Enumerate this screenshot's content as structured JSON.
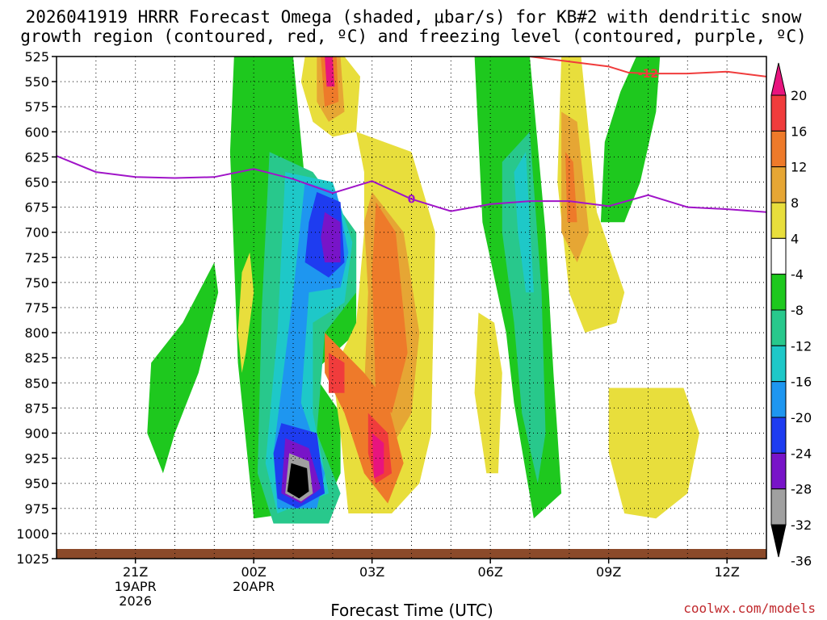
{
  "chart_data": {
    "type": "heatmap",
    "title_line1": "2026041919 HRRR Forecast Omega (shaded, μbar/s) for KB#2 with dendritic snow",
    "title_line2": "growth region (contoured, red, ºC) and freezing level (contoured, purple, ºC)",
    "xlabel": "Forecast Time (UTC)",
    "y_ticks": [
      525,
      550,
      575,
      600,
      625,
      650,
      675,
      700,
      725,
      750,
      775,
      800,
      825,
      850,
      875,
      900,
      925,
      950,
      975,
      1000,
      1025
    ],
    "y_range_hPa": [
      525,
      1025
    ],
    "x_range_hours": [
      -5,
      13
    ],
    "x_ticks": [
      {
        "hour": -3,
        "lines": [
          "21Z",
          "19APR",
          "2026"
        ]
      },
      {
        "hour": 0,
        "lines": [
          "00Z",
          "20APR"
        ]
      },
      {
        "hour": 3,
        "lines": [
          "03Z"
        ]
      },
      {
        "hour": 6,
        "lines": [
          "06Z"
        ]
      },
      {
        "hour": 9,
        "lines": [
          "09Z"
        ]
      },
      {
        "hour": 12,
        "lines": [
          "12Z"
        ]
      }
    ],
    "colorbar": {
      "labels": [
        "20",
        "16",
        "12",
        "8",
        "4",
        "-4",
        "-8",
        "-12",
        "-16",
        "-20",
        "-24",
        "-28",
        "-32",
        "-36"
      ],
      "colors": [
        "#e8147e",
        "#f03c3c",
        "#ee7a2a",
        "#e6a634",
        "#e8de3c",
        "#ffffff",
        "#1ec81e",
        "#28c88c",
        "#1ec8c8",
        "#1e96f0",
        "#1e3cf0",
        "#7814c8",
        "#a0a0a0",
        "#000000"
      ]
    },
    "contours": [
      {
        "name": "freezing-level",
        "label": "0",
        "color": "#a014c8",
        "points": [
          [
            -5,
            624
          ],
          [
            -4,
            640
          ],
          [
            -3,
            645
          ],
          [
            -2,
            646
          ],
          [
            -1,
            645
          ],
          [
            0,
            637
          ],
          [
            1,
            647
          ],
          [
            2,
            661
          ],
          [
            3,
            649
          ],
          [
            4,
            667
          ],
          [
            5,
            679
          ],
          [
            6,
            672
          ],
          [
            7,
            669
          ],
          [
            8,
            669
          ],
          [
            9,
            674
          ],
          [
            10,
            663
          ],
          [
            11,
            675
          ],
          [
            12,
            677
          ],
          [
            13,
            680
          ]
        ]
      },
      {
        "name": "dgz-minus12",
        "label": "-12",
        "color": "#f03c3c",
        "points": [
          [
            7,
            525
          ],
          [
            8,
            530
          ],
          [
            9,
            535
          ],
          [
            9.5,
            541
          ],
          [
            10,
            542
          ],
          [
            11,
            542
          ],
          [
            12,
            540
          ],
          [
            13,
            545
          ]
        ]
      }
    ],
    "regions": [
      {
        "label": "green-w",
        "c": "#1ec81e",
        "p": [
          [
            -1,
            525
          ],
          [
            1,
            525
          ],
          [
            1.3,
            650
          ],
          [
            2.6,
            700
          ],
          [
            2.6,
            800
          ],
          [
            1.5,
            840
          ],
          [
            2.2,
            880
          ],
          [
            2.2,
            940
          ],
          [
            1.8,
            975
          ],
          [
            0,
            985
          ],
          [
            -0.4,
            830
          ],
          [
            -0.6,
            620
          ],
          [
            -0.5,
            525
          ]
        ]
      },
      {
        "label": "yellow-w",
        "c": "#e8de3c",
        "p": [
          [
            2.6,
            600
          ],
          [
            4,
            620
          ],
          [
            4.6,
            700
          ],
          [
            4.5,
            900
          ],
          [
            4.2,
            950
          ],
          [
            3.5,
            980
          ],
          [
            2.4,
            980
          ],
          [
            2.2,
            900
          ],
          [
            2.0,
            840
          ],
          [
            2.6,
            790
          ],
          [
            2.8,
            700
          ],
          [
            2.8,
            640
          ]
        ]
      },
      {
        "label": "teal-w",
        "c": "#28c88c",
        "p": [
          [
            0.4,
            620
          ],
          [
            1.5,
            640
          ],
          [
            2.6,
            700
          ],
          [
            2.6,
            760
          ],
          [
            1.8,
            800
          ],
          [
            1.6,
            900
          ],
          [
            2.2,
            960
          ],
          [
            1.9,
            990
          ],
          [
            0.5,
            990
          ],
          [
            0.1,
            940
          ],
          [
            0.2,
            780
          ]
        ]
      },
      {
        "label": "cyan-w",
        "c": "#1ec8c8",
        "p": [
          [
            0.8,
            640
          ],
          [
            2.0,
            650
          ],
          [
            2.5,
            710
          ],
          [
            2.3,
            770
          ],
          [
            1.5,
            790
          ],
          [
            1.5,
            880
          ],
          [
            1.9,
            960
          ],
          [
            0.6,
            980
          ],
          [
            0.3,
            930
          ],
          [
            0.6,
            800
          ]
        ]
      },
      {
        "label": "blue-w",
        "c": "#1e96f0",
        "p": [
          [
            1.3,
            650
          ],
          [
            2.1,
            660
          ],
          [
            2.4,
            720
          ],
          [
            2.2,
            755
          ],
          [
            1.4,
            760
          ],
          [
            1.2,
            870
          ],
          [
            1.8,
            940
          ],
          [
            1.6,
            975
          ],
          [
            0.6,
            975
          ],
          [
            0.5,
            920
          ],
          [
            1.0,
            760
          ]
        ]
      },
      {
        "label": "royal-w",
        "c": "#1e3cf0",
        "p": [
          [
            1.6,
            660
          ],
          [
            2.2,
            670
          ],
          [
            2.3,
            730
          ],
          [
            1.9,
            745
          ],
          [
            1.3,
            730
          ],
          [
            1.4,
            690
          ]
        ]
      },
      {
        "label": "royal-w2",
        "c": "#1e3cf0",
        "p": [
          [
            0.7,
            890
          ],
          [
            1.6,
            900
          ],
          [
            1.8,
            960
          ],
          [
            1.1,
            975
          ],
          [
            0.6,
            965
          ],
          [
            0.5,
            920
          ]
        ]
      },
      {
        "label": "purple-w",
        "c": "#7814c8",
        "p": [
          [
            1.8,
            680
          ],
          [
            2.2,
            690
          ],
          [
            2.2,
            730
          ],
          [
            1.8,
            730
          ],
          [
            1.7,
            705
          ]
        ]
      },
      {
        "label": "purple-w2",
        "c": "#7814c8",
        "p": [
          [
            0.8,
            905
          ],
          [
            1.4,
            915
          ],
          [
            1.7,
            955
          ],
          [
            1.2,
            970
          ],
          [
            0.7,
            960
          ]
        ]
      },
      {
        "label": "gray-w",
        "c": "#a0a0a0",
        "p": [
          [
            0.9,
            920
          ],
          [
            1.4,
            928
          ],
          [
            1.5,
            960
          ],
          [
            1.2,
            968
          ],
          [
            0.8,
            960
          ]
        ]
      },
      {
        "label": "black-w",
        "c": "#000000",
        "p": [
          [
            0.95,
            930
          ],
          [
            1.35,
            935
          ],
          [
            1.4,
            958
          ],
          [
            1.15,
            965
          ],
          [
            0.85,
            958
          ]
        ]
      },
      {
        "label": "yellow-top",
        "c": "#e8de3c",
        "p": [
          [
            1.3,
            525
          ],
          [
            2.3,
            525
          ],
          [
            2.7,
            545
          ],
          [
            2.6,
            600
          ],
          [
            2.0,
            605
          ],
          [
            1.5,
            590
          ],
          [
            1.2,
            550
          ]
        ]
      },
      {
        "label": "orange-top",
        "c": "#e6a634",
        "p": [
          [
            1.6,
            525
          ],
          [
            2.2,
            525
          ],
          [
            2.3,
            580
          ],
          [
            1.9,
            590
          ],
          [
            1.6,
            570
          ]
        ]
      },
      {
        "label": "red-top",
        "c": "#ee7a2a",
        "p": [
          [
            1.7,
            525
          ],
          [
            2.1,
            525
          ],
          [
            2.15,
            570
          ],
          [
            1.8,
            575
          ]
        ]
      },
      {
        "label": "magenta-top",
        "c": "#e8147e",
        "p": [
          [
            1.8,
            525
          ],
          [
            2.0,
            525
          ],
          [
            2.05,
            555
          ],
          [
            1.85,
            555
          ]
        ]
      },
      {
        "label": "orange-mid",
        "c": "#e6a634",
        "p": [
          [
            3.0,
            660
          ],
          [
            3.8,
            700
          ],
          [
            4.2,
            800
          ],
          [
            4.0,
            880
          ],
          [
            3.4,
            920
          ],
          [
            2.8,
            860
          ],
          [
            2.9,
            760
          ],
          [
            2.8,
            690
          ]
        ]
      },
      {
        "label": "red-mid",
        "c": "#ee7a2a",
        "p": [
          [
            3.1,
            670
          ],
          [
            3.6,
            700
          ],
          [
            3.9,
            820
          ],
          [
            3.5,
            880
          ],
          [
            3.1,
            870
          ],
          [
            3.0,
            740
          ]
        ]
      },
      {
        "label": "red-low",
        "c": "#ee7a2a",
        "p": [
          [
            1.8,
            800
          ],
          [
            2.8,
            840
          ],
          [
            3.4,
            870
          ],
          [
            3.8,
            930
          ],
          [
            3.4,
            970
          ],
          [
            2.8,
            940
          ],
          [
            2.3,
            880
          ],
          [
            1.8,
            840
          ]
        ]
      },
      {
        "label": "red-low2",
        "c": "#f03c3c",
        "p": [
          [
            2.9,
            880
          ],
          [
            3.4,
            900
          ],
          [
            3.5,
            940
          ],
          [
            3.1,
            950
          ],
          [
            2.9,
            920
          ]
        ]
      },
      {
        "label": "magenta-low",
        "c": "#e8147e",
        "p": [
          [
            3.0,
            900
          ],
          [
            3.3,
            910
          ],
          [
            3.3,
            940
          ],
          [
            3.05,
            945
          ]
        ]
      },
      {
        "label": "red-low3",
        "c": "#f03c3c",
        "p": [
          [
            1.9,
            820
          ],
          [
            2.3,
            830
          ],
          [
            2.3,
            860
          ],
          [
            1.9,
            860
          ]
        ]
      },
      {
        "label": "green-e",
        "c": "#1ec81e",
        "p": [
          [
            5.6,
            525
          ],
          [
            7.0,
            525
          ],
          [
            7.4,
            700
          ],
          [
            7.6,
            840
          ],
          [
            7.8,
            960
          ],
          [
            7.1,
            985
          ],
          [
            6.6,
            870
          ],
          [
            6.4,
            800
          ],
          [
            5.8,
            690
          ]
        ]
      },
      {
        "label": "teal-e",
        "c": "#28c88c",
        "p": [
          [
            6.3,
            630
          ],
          [
            7.0,
            600
          ],
          [
            7.3,
            760
          ],
          [
            7.4,
            900
          ],
          [
            7.2,
            950
          ],
          [
            6.8,
            880
          ],
          [
            6.6,
            790
          ],
          [
            6.3,
            700
          ]
        ]
      },
      {
        "label": "cyan-e",
        "c": "#1ec8c8",
        "p": [
          [
            6.6,
            640
          ],
          [
            6.9,
            620
          ],
          [
            7.1,
            760
          ],
          [
            6.9,
            760
          ],
          [
            6.7,
            700
          ]
        ]
      },
      {
        "label": "yellow-e",
        "c": "#e8de3c",
        "p": [
          [
            7.8,
            525
          ],
          [
            8.3,
            525
          ],
          [
            8.7,
            680
          ],
          [
            9.4,
            760
          ],
          [
            9.2,
            790
          ],
          [
            8.4,
            800
          ],
          [
            8.0,
            760
          ],
          [
            7.7,
            650
          ]
        ]
      },
      {
        "label": "orange-e",
        "c": "#e6a634",
        "p": [
          [
            7.8,
            580
          ],
          [
            8.2,
            590
          ],
          [
            8.5,
            700
          ],
          [
            8.2,
            730
          ],
          [
            7.8,
            700
          ]
        ]
      },
      {
        "label": "red-e",
        "c": "#ee7a2a",
        "p": [
          [
            7.9,
            620
          ],
          [
            8.1,
            630
          ],
          [
            8.2,
            690
          ],
          [
            7.95,
            690
          ]
        ]
      },
      {
        "label": "yellow-e2",
        "c": "#e8de3c",
        "p": [
          [
            5.7,
            780
          ],
          [
            6.1,
            790
          ],
          [
            6.3,
            840
          ],
          [
            6.2,
            940
          ],
          [
            5.9,
            940
          ],
          [
            5.6,
            860
          ]
        ]
      },
      {
        "label": "yellow-e3",
        "c": "#e8de3c",
        "p": [
          [
            9.0,
            855
          ],
          [
            10.9,
            855
          ],
          [
            11.3,
            900
          ],
          [
            11.0,
            960
          ],
          [
            10.2,
            985
          ],
          [
            9.4,
            980
          ],
          [
            9.0,
            920
          ]
        ]
      },
      {
        "label": "green-e2",
        "c": "#1ec81e",
        "p": [
          [
            9.7,
            525
          ],
          [
            10.3,
            525
          ],
          [
            10.2,
            580
          ],
          [
            9.8,
            650
          ],
          [
            9.4,
            690
          ],
          [
            8.8,
            690
          ],
          [
            8.9,
            610
          ],
          [
            9.3,
            560
          ]
        ]
      },
      {
        "label": "green-small",
        "c": "#1ec81e",
        "p": [
          [
            -1.0,
            730
          ],
          [
            -0.9,
            760
          ],
          [
            -1.4,
            840
          ],
          [
            -2.0,
            900
          ],
          [
            -2.3,
            940
          ],
          [
            -2.7,
            900
          ],
          [
            -2.6,
            830
          ],
          [
            -1.8,
            790
          ]
        ]
      },
      {
        "label": "yellow-small",
        "c": "#e8de3c",
        "p": [
          [
            -0.1,
            720
          ],
          [
            0.0,
            760
          ],
          [
            -0.2,
            820
          ],
          [
            -0.3,
            840
          ],
          [
            -0.4,
            800
          ],
          [
            -0.3,
            740
          ]
        ]
      }
    ]
  },
  "credit": "coolwx.com/models"
}
